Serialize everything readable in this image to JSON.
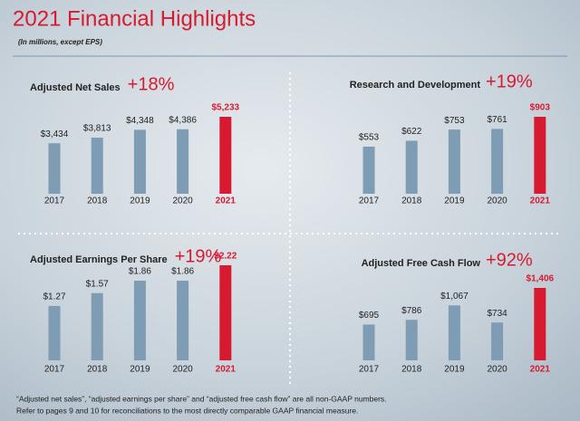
{
  "header": {
    "title": "2021 Financial Highlights",
    "subtitle": "(In millions, except EPS)"
  },
  "chart_data": [
    {
      "type": "bar",
      "title": "Adjusted Net Sales",
      "annotation": "+18%",
      "categories": [
        "2017",
        "2018",
        "2019",
        "2020",
        "2021"
      ],
      "values": [
        3434,
        3813,
        4348,
        4386,
        5233
      ],
      "value_labels": [
        "$3,434",
        "$3,813",
        "$4,348",
        "$4,386",
        "$5,233"
      ],
      "colors": [
        "#7e9cb3",
        "#7e9cb3",
        "#7e9cb3",
        "#7e9cb3",
        "#d71a2f"
      ]
    },
    {
      "type": "bar",
      "title": "Research and Development",
      "annotation": "+19%",
      "categories": [
        "2017",
        "2018",
        "2019",
        "2020",
        "2021"
      ],
      "values": [
        553,
        622,
        753,
        761,
        903
      ],
      "value_labels": [
        "$553",
        "$622",
        "$753",
        "$761",
        "$903"
      ],
      "colors": [
        "#7e9cb3",
        "#7e9cb3",
        "#7e9cb3",
        "#7e9cb3",
        "#d71a2f"
      ]
    },
    {
      "type": "bar",
      "title": "Adjusted Earnings Per Share",
      "annotation": "+19%",
      "categories": [
        "2017",
        "2018",
        "2019",
        "2020",
        "2021"
      ],
      "values": [
        1.27,
        1.57,
        1.86,
        1.86,
        2.22
      ],
      "value_labels": [
        "$1.27",
        "$1.57",
        "$1.86",
        "$1.86",
        "$2.22"
      ],
      "colors": [
        "#7e9cb3",
        "#7e9cb3",
        "#7e9cb3",
        "#7e9cb3",
        "#d71a2f"
      ]
    },
    {
      "type": "bar",
      "title": "Adjusted Free Cash Flow",
      "annotation": "+92%",
      "categories": [
        "2017",
        "2018",
        "2019",
        "2020",
        "2021"
      ],
      "values": [
        695,
        786,
        1067,
        734,
        1406
      ],
      "value_labels": [
        "$695",
        "$786",
        "$1,067",
        "$734",
        "$1,406"
      ],
      "colors": [
        "#7e9cb3",
        "#7e9cb3",
        "#7e9cb3",
        "#7e9cb3",
        "#d71a2f"
      ]
    }
  ],
  "footnote": [
    "“Adjusted net sales”, “adjusted earnings per share” and “adjusted free cash flow” are all non-GAAP numbers.",
    "Refer to pages 9 and 10 for reconciliations to the most directly comparable GAAP financial measure."
  ]
}
